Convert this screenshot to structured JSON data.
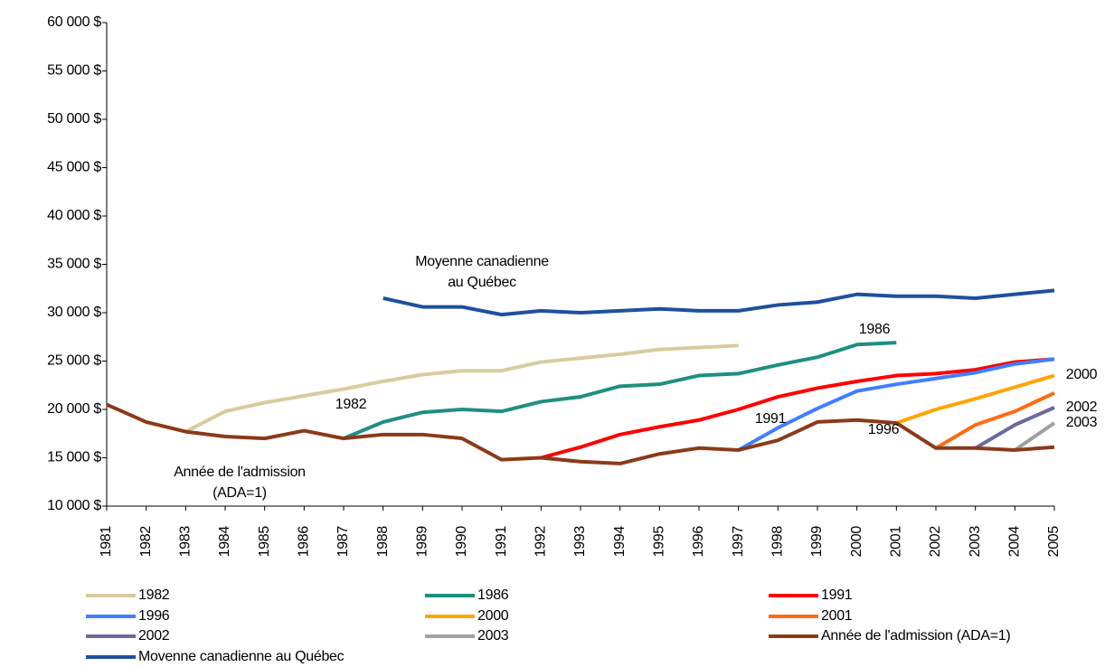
{
  "chart_data": {
    "type": "line",
    "categories": [
      "1981",
      "1982",
      "1983",
      "1984",
      "1985",
      "1986",
      "1987",
      "1988",
      "1989",
      "1990",
      "1991",
      "1992",
      "1993",
      "1994",
      "1995",
      "1996",
      "1997",
      "1998",
      "1999",
      "2000",
      "2001",
      "2002",
      "2003",
      "2004",
      "2005"
    ],
    "ylim": [
      10000,
      60000
    ],
    "yticks": [
      {
        "value": 10000,
        "label": "10 000 $"
      },
      {
        "value": 15000,
        "label": "15 000 $"
      },
      {
        "value": 20000,
        "label": "20 000 $"
      },
      {
        "value": 25000,
        "label": "25 000 $"
      },
      {
        "value": 30000,
        "label": "30 000 $"
      },
      {
        "value": 35000,
        "label": "35 000 $"
      },
      {
        "value": 40000,
        "label": "40 000 $"
      },
      {
        "value": 45000,
        "label": "45 000 $"
      },
      {
        "value": 50000,
        "label": "50 000 $"
      },
      {
        "value": 55000,
        "label": "55 000 $"
      },
      {
        "value": 60000,
        "label": "60 000 $"
      }
    ],
    "grid": false,
    "series": [
      {
        "name": "1982",
        "color": "#d8cc9e",
        "values": [
          null,
          null,
          17700,
          19800,
          20700,
          21400,
          22100,
          22900,
          23600,
          24000,
          24000,
          24900,
          25300,
          25700,
          26200,
          26400,
          26600,
          null,
          null,
          null,
          null,
          null,
          null,
          null,
          null
        ]
      },
      {
        "name": "1986",
        "color": "#1f8f80",
        "values": [
          null,
          null,
          null,
          null,
          null,
          null,
          17000,
          18700,
          19700,
          20000,
          19800,
          20800,
          21300,
          22400,
          22600,
          23500,
          23700,
          24600,
          25400,
          26700,
          26900,
          null,
          null,
          null,
          null
        ]
      },
      {
        "name": "1991",
        "color": "#ff0000",
        "values": [
          null,
          null,
          null,
          null,
          null,
          null,
          null,
          null,
          null,
          null,
          null,
          15000,
          16100,
          17400,
          18200,
          18900,
          20000,
          21300,
          22200,
          22900,
          23500,
          23700,
          24100,
          24900,
          25200
        ]
      },
      {
        "name": "1996",
        "color": "#3f7fff",
        "values": [
          null,
          null,
          null,
          null,
          null,
          null,
          null,
          null,
          null,
          null,
          null,
          null,
          null,
          null,
          null,
          null,
          15800,
          18100,
          20100,
          21900,
          22600,
          23200,
          23800,
          24700,
          25200
        ]
      },
      {
        "name": "2000",
        "color": "#ffa500",
        "values": [
          null,
          null,
          null,
          null,
          null,
          null,
          null,
          null,
          null,
          null,
          null,
          null,
          null,
          null,
          null,
          null,
          null,
          null,
          null,
          null,
          18600,
          20000,
          21100,
          22300,
          23500
        ]
      },
      {
        "name": "2001",
        "color": "#ff6a13",
        "values": [
          null,
          null,
          null,
          null,
          null,
          null,
          null,
          null,
          null,
          null,
          null,
          null,
          null,
          null,
          null,
          null,
          null,
          null,
          null,
          null,
          null,
          16000,
          18400,
          19800,
          21700
        ]
      },
      {
        "name": "2002",
        "color": "#6a6a9f",
        "values": [
          null,
          null,
          null,
          null,
          null,
          null,
          null,
          null,
          null,
          null,
          null,
          null,
          null,
          null,
          null,
          null,
          null,
          null,
          null,
          null,
          null,
          null,
          16000,
          18400,
          20200
        ]
      },
      {
        "name": "2003",
        "color": "#a0a0a0",
        "values": [
          null,
          null,
          null,
          null,
          null,
          null,
          null,
          null,
          null,
          null,
          null,
          null,
          null,
          null,
          null,
          null,
          null,
          null,
          null,
          null,
          null,
          null,
          null,
          15800,
          18600
        ]
      },
      {
        "name": "Année de l'admission (ADA=1)",
        "color": "#8b3a1a",
        "values": [
          20500,
          18700,
          17700,
          17200,
          17000,
          17800,
          17000,
          17400,
          17400,
          17000,
          14800,
          15000,
          14600,
          14400,
          15400,
          16000,
          15800,
          16800,
          18700,
          18900,
          18600,
          16000,
          16000,
          15800,
          16100
        ]
      },
      {
        "name": "Movenne canadienne au Québec",
        "color": "#1f4f9f",
        "values": [
          null,
          null,
          null,
          null,
          null,
          null,
          null,
          31500,
          30600,
          30600,
          29800,
          30200,
          30000,
          30200,
          30400,
          30200,
          30200,
          30800,
          31100,
          31900,
          31700,
          31700,
          31500,
          31900,
          32300
        ]
      }
    ],
    "annotations": [
      [
        "Moyenne canadienne",
        "au Québec"
      ],
      [
        "1986"
      ],
      [
        "1982"
      ],
      [
        "1991"
      ],
      [
        "1996"
      ],
      [
        "2000"
      ],
      [
        "2002"
      ],
      [
        "2003"
      ],
      [
        "Année de l'admission",
        "(ADA=1)"
      ]
    ]
  }
}
